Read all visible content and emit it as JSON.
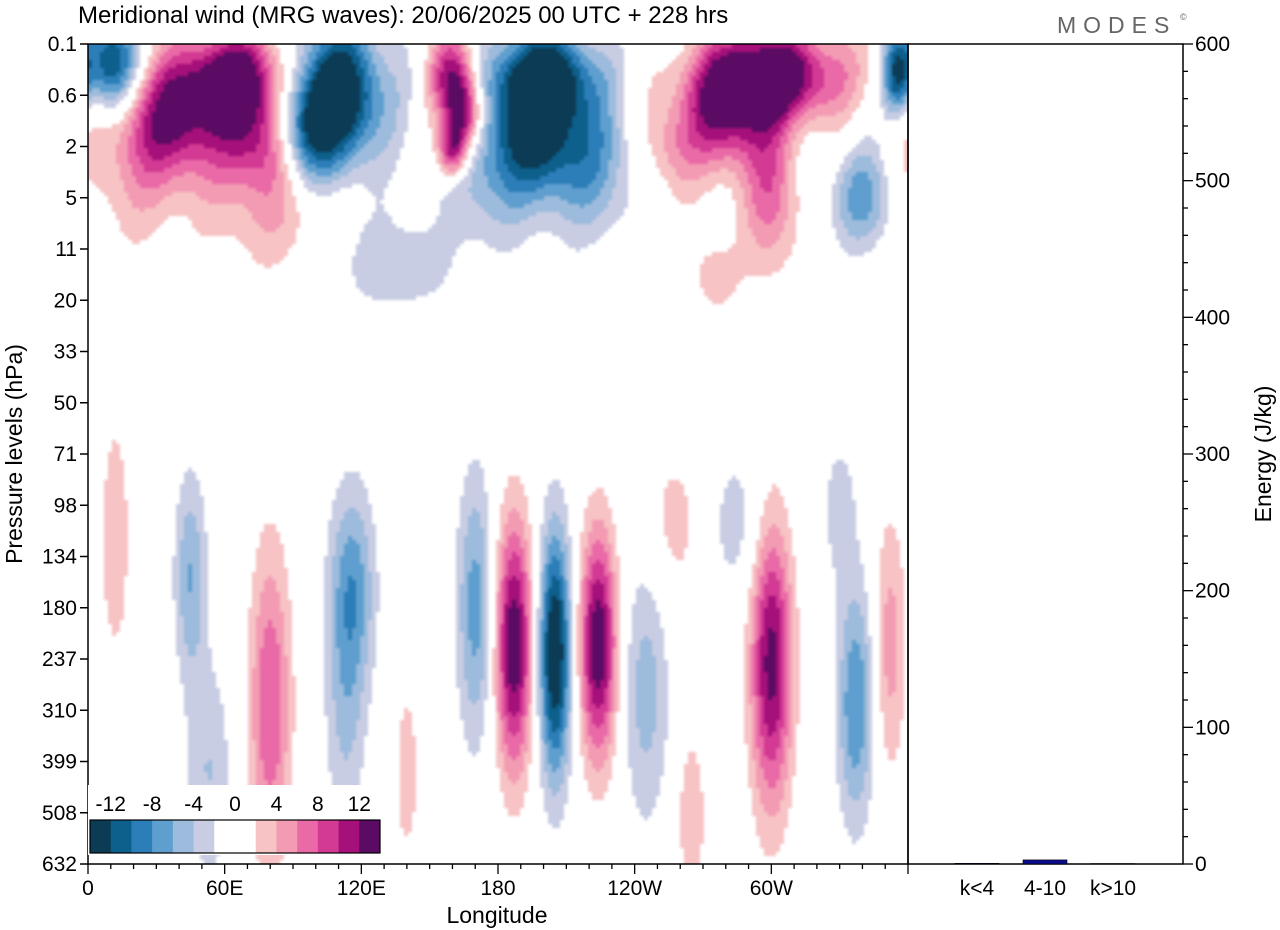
{
  "title": "Meridional wind (MRG waves):  20/06/2025  00 UTC  + 228 hrs",
  "brand": "MODES",
  "brand_mark": "©",
  "colors": {
    "neg": [
      "#0c3b55",
      "#0d5f8c",
      "#2c7eb8",
      "#5f9fcf",
      "#9dbbdc",
      "#c8cde4"
    ],
    "zero": "#ffffff",
    "pos": [
      "#f8c3c4",
      "#f49bb4",
      "#e96aa7",
      "#d23a93",
      "#a6107a",
      "#5b0b63"
    ],
    "bar": "#0c0c8a"
  },
  "chart_data": [
    {
      "type": "heatmap",
      "title": "Meridional wind (MRG waves):  20/06/2025  00 UTC  + 228 hrs",
      "xlabel": "Longitude",
      "ylabel": "Pressure levels (hPa)",
      "x_ticks": [
        "0",
        "60E",
        "120E",
        "180",
        "120W",
        "60W"
      ],
      "y_ticks": [
        "0.1",
        "0.6",
        "2",
        "5",
        "11",
        "20",
        "33",
        "50",
        "71",
        "98",
        "134",
        "180",
        "237",
        "310",
        "399",
        "508",
        "632"
      ],
      "colorbar_ticks": [
        "-12",
        "-8",
        "-4",
        "0",
        "4",
        "8",
        "12"
      ],
      "levels": [
        -14,
        -12,
        -10,
        -8,
        -6,
        -4,
        -2,
        2,
        4,
        6,
        8,
        10,
        12,
        14
      ],
      "features": [
        {
          "lon": 10,
          "lev": 0.2,
          "w": 12,
          "h": 0.9,
          "val": -14
        },
        {
          "lon": 65,
          "lev": 0.3,
          "w": 22,
          "h": 0.9,
          "val": 13
        },
        {
          "lon": 40,
          "lev": 1.0,
          "w": 22,
          "h": 1.2,
          "val": 11
        },
        {
          "lon": 75,
          "lev": 1.6,
          "w": 16,
          "h": 1.0,
          "val": 9
        },
        {
          "lon": 20,
          "lev": 2.5,
          "w": 25,
          "h": 1.6,
          "val": 4
        },
        {
          "lon": 110,
          "lev": 0.6,
          "w": 20,
          "h": 1.4,
          "val": -16
        },
        {
          "lon": 95,
          "lev": 1.5,
          "w": 14,
          "h": 1.0,
          "val": -8
        },
        {
          "lon": 160,
          "lev": 0.3,
          "w": 10,
          "h": 0.8,
          "val": 11
        },
        {
          "lon": 165,
          "lev": 1.0,
          "w": 8,
          "h": 0.7,
          "val": 13
        },
        {
          "lon": 160,
          "lev": 2.2,
          "w": 6,
          "h": 0.5,
          "val": 11
        },
        {
          "lon": 200,
          "lev": 0.3,
          "w": 22,
          "h": 0.9,
          "val": -14
        },
        {
          "lon": 195,
          "lev": 1.5,
          "w": 22,
          "h": 1.2,
          "val": -11
        },
        {
          "lon": 220,
          "lev": 2.8,
          "w": 24,
          "h": 1.4,
          "val": -6
        },
        {
          "lon": 175,
          "lev": 4.0,
          "w": 18,
          "h": 1.3,
          "val": -4
        },
        {
          "lon": 255,
          "lev": 2.0,
          "w": 14,
          "h": 1.0,
          "val": 5
        },
        {
          "lon": 300,
          "lev": 0.3,
          "w": 30,
          "h": 0.9,
          "val": 16
        },
        {
          "lon": 280,
          "lev": 1.0,
          "w": 18,
          "h": 1.1,
          "val": 10
        },
        {
          "lon": 300,
          "lev": 4.5,
          "w": 12,
          "h": 1.5,
          "val": 7
        },
        {
          "lon": 355,
          "lev": 0.3,
          "w": 6,
          "h": 0.8,
          "val": -11
        },
        {
          "lon": 340,
          "lev": 5.0,
          "w": 14,
          "h": 1.0,
          "val": -7
        },
        {
          "lon": 80,
          "lev": 5.5,
          "w": 26,
          "h": 1.3,
          "val": 4
        },
        {
          "lon": 135,
          "lev": 13.0,
          "w": 24,
          "h": 0.9,
          "val": -4
        },
        {
          "lon": 275,
          "lev": 15.0,
          "w": 12,
          "h": 0.9,
          "val": 3
        },
        {
          "lon": 12,
          "lev": 120.0,
          "w": 8,
          "h": 3.0,
          "val": 3
        },
        {
          "lon": 45,
          "lev": 150.0,
          "w": 7,
          "h": 2.0,
          "val": -6
        },
        {
          "lon": 53,
          "lev": 420.0,
          "w": 10,
          "h": 2.2,
          "val": -4
        },
        {
          "lon": 80,
          "lev": 300.0,
          "w": 9,
          "h": 3.0,
          "val": 8
        },
        {
          "lon": 116,
          "lev": 160.0,
          "w": 10,
          "h": 2.0,
          "val": -7
        },
        {
          "lon": 113,
          "lev": 320.0,
          "w": 9,
          "h": 2.5,
          "val": -4
        },
        {
          "lon": 170,
          "lev": 180.0,
          "w": 8,
          "h": 2.6,
          "val": -7
        },
        {
          "lon": 187,
          "lev": 220.0,
          "w": 8,
          "h": 2.4,
          "val": 14
        },
        {
          "lon": 205,
          "lev": 230.0,
          "w": 7,
          "h": 2.4,
          "val": -15
        },
        {
          "lon": 224,
          "lev": 220.0,
          "w": 8,
          "h": 2.2,
          "val": 14
        },
        {
          "lon": 245,
          "lev": 280.0,
          "w": 10,
          "h": 2.6,
          "val": -5
        },
        {
          "lon": 300,
          "lev": 240.0,
          "w": 9,
          "h": 2.8,
          "val": 13
        },
        {
          "lon": 337,
          "lev": 300.0,
          "w": 8,
          "h": 2.3,
          "val": -8
        },
        {
          "lon": 352,
          "lev": 220.0,
          "w": 7,
          "h": 2.5,
          "val": 5
        },
        {
          "lon": 140,
          "lev": 420.0,
          "w": 6,
          "h": 2.0,
          "val": 3
        },
        {
          "lon": 265,
          "lev": 520.0,
          "w": 6,
          "h": 1.6,
          "val": 4
        },
        {
          "lon": 258,
          "lev": 110.0,
          "w": 14,
          "h": 1.6,
          "val": 3
        },
        {
          "lon": 285,
          "lev": 110.0,
          "w": 16,
          "h": 1.6,
          "val": -3
        },
        {
          "lon": 330,
          "lev": 100.0,
          "w": 8,
          "h": 1.5,
          "val": -3
        }
      ]
    },
    {
      "type": "bar",
      "ylabel": "Energy (J/kg)",
      "categories": [
        "k<4",
        "4-10",
        "k>10"
      ],
      "values": [
        0.5,
        3,
        0.3
      ],
      "ylim": [
        0,
        600
      ],
      "y_ticks": [
        "0",
        "100",
        "200",
        "300",
        "400",
        "500",
        "600"
      ]
    }
  ]
}
